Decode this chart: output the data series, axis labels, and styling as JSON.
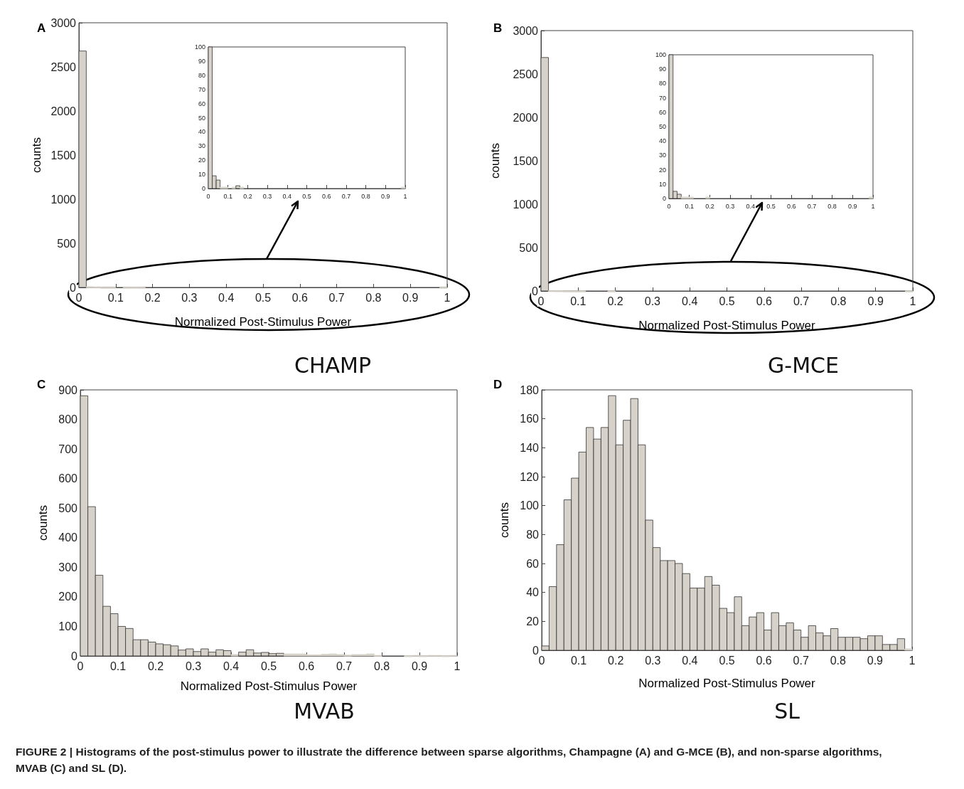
{
  "chart_data": [
    {
      "type": "histogram",
      "title": "CHAMP",
      "xlabel": "Normalized Post-Stimulus Power",
      "ylabel": "counts",
      "annotations": [
        "A"
      ],
      "color": "#d6d2c9",
      "bins": [
        0,
        0.02,
        0.04,
        0.06,
        0.08,
        0.1,
        0.12,
        0.14,
        0.16,
        0.18,
        0.2,
        0.22,
        0.24,
        0.26,
        0.28,
        0.3,
        0.32,
        0.34,
        0.36,
        0.38,
        0.4,
        0.42,
        0.44,
        0.46,
        0.48,
        0.5,
        0.52,
        0.54,
        0.56,
        0.58,
        0.6,
        0.62,
        0.64,
        0.66,
        0.68,
        0.7,
        0.72,
        0.74,
        0.76,
        0.78,
        0.8,
        0.82,
        0.84,
        0.86,
        0.88,
        0.9,
        0.92,
        0.94,
        0.96,
        0.98,
        1
      ],
      "values": [
        2680,
        9,
        6,
        1,
        1,
        0,
        1,
        2,
        1,
        0,
        0,
        0,
        0,
        0,
        0,
        0,
        0,
        0,
        0,
        0,
        0,
        0,
        0,
        0,
        0,
        0,
        0,
        0,
        0,
        0,
        0,
        0,
        0,
        0,
        0,
        0,
        0,
        0,
        0,
        0,
        0,
        0,
        0,
        0,
        0,
        0,
        0,
        0,
        0,
        1
      ],
      "xlim": [
        0,
        1
      ],
      "xticks": [
        0,
        0.1,
        0.2,
        0.3,
        0.4,
        0.5,
        0.6,
        0.7,
        0.8,
        0.9,
        1
      ],
      "ylim": [
        0,
        3000
      ],
      "yticks": [
        0,
        500,
        1000,
        1500,
        2000,
        2500,
        3000
      ]
    },
    {
      "type": "histogram",
      "color": "#d6d2c9",
      "bins": [
        0,
        0.02,
        0.04,
        0.06,
        0.08,
        0.1,
        0.12,
        0.14,
        0.16,
        0.18,
        0.2,
        0.22,
        0.24,
        0.26,
        0.28,
        0.3,
        0.32,
        0.34,
        0.36,
        0.38,
        0.4,
        0.42,
        0.44,
        0.46,
        0.48,
        0.5,
        0.52,
        0.54,
        0.56,
        0.58,
        0.6,
        0.62,
        0.64,
        0.66,
        0.68,
        0.7,
        0.72,
        0.74,
        0.76,
        0.78,
        0.8,
        0.82,
        0.84,
        0.86,
        0.88,
        0.9,
        0.92,
        0.94,
        0.96,
        0.98,
        1
      ],
      "values": [
        100,
        9,
        6,
        1,
        1,
        0,
        1,
        2,
        1,
        0,
        0,
        0,
        0,
        0,
        0,
        0,
        0,
        0,
        0,
        0,
        0,
        0,
        0,
        0,
        0,
        0,
        0,
        0,
        0,
        0,
        0,
        0,
        0,
        0,
        0,
        0,
        0,
        0,
        0,
        0,
        0,
        0,
        0,
        0,
        0,
        0,
        0,
        0,
        0,
        1
      ],
      "xlim": [
        0,
        1
      ],
      "xticks": [
        0,
        0.1,
        0.2,
        0.3,
        0.4,
        0.5,
        0.6,
        0.7,
        0.8,
        0.9,
        1
      ],
      "ylim": [
        0,
        100
      ],
      "yticks": [
        0,
        10,
        20,
        30,
        40,
        50,
        60,
        70,
        80,
        90,
        100
      ]
    },
    {
      "type": "histogram",
      "title": "G-MCE",
      "xlabel": "Normalized Post-Stimulus Power",
      "ylabel": "counts",
      "annotations": [
        "B"
      ],
      "color": "#d6d2c9",
      "bins": [
        0,
        0.02,
        0.04,
        0.06,
        0.08,
        0.1,
        0.12,
        0.14,
        0.16,
        0.18,
        0.2,
        0.22,
        0.24,
        0.26,
        0.28,
        0.3,
        0.32,
        0.34,
        0.36,
        0.38,
        0.4,
        0.42,
        0.44,
        0.46,
        0.48,
        0.5,
        0.52,
        0.54,
        0.56,
        0.58,
        0.6,
        0.62,
        0.64,
        0.66,
        0.68,
        0.7,
        0.72,
        0.74,
        0.76,
        0.78,
        0.8,
        0.82,
        0.84,
        0.86,
        0.88,
        0.9,
        0.92,
        0.94,
        0.96,
        0.98,
        1
      ],
      "values": [
        2690,
        5,
        3,
        1,
        1,
        1,
        0,
        0,
        0,
        1,
        0,
        0,
        0,
        0,
        0,
        0,
        0,
        0,
        0,
        0,
        0,
        0,
        0,
        0,
        0,
        0,
        0,
        0,
        0,
        0,
        0,
        0,
        0,
        0,
        0,
        0,
        0,
        0,
        0,
        0,
        0,
        0,
        0,
        0,
        0,
        0,
        0,
        0,
        0,
        1
      ],
      "xlim": [
        0,
        1
      ],
      "xticks": [
        0,
        0.1,
        0.2,
        0.3,
        0.4,
        0.5,
        0.6,
        0.7,
        0.8,
        0.9,
        1
      ],
      "ylim": [
        0,
        3000
      ],
      "yticks": [
        0,
        500,
        1000,
        1500,
        2000,
        2500,
        3000
      ]
    },
    {
      "type": "histogram",
      "color": "#d6d2c9",
      "bins": [
        0,
        0.02,
        0.04,
        0.06,
        0.08,
        0.1,
        0.12,
        0.14,
        0.16,
        0.18,
        0.2,
        0.22,
        0.24,
        0.26,
        0.28,
        0.3,
        0.32,
        0.34,
        0.36,
        0.38,
        0.4,
        0.42,
        0.44,
        0.46,
        0.48,
        0.5,
        0.52,
        0.54,
        0.56,
        0.58,
        0.6,
        0.62,
        0.64,
        0.66,
        0.68,
        0.7,
        0.72,
        0.74,
        0.76,
        0.78,
        0.8,
        0.82,
        0.84,
        0.86,
        0.88,
        0.9,
        0.92,
        0.94,
        0.96,
        0.98,
        1
      ],
      "values": [
        100,
        5,
        3,
        1,
        1,
        1,
        0,
        0,
        0,
        1,
        0,
        0,
        0,
        0,
        0,
        0,
        0,
        0,
        0,
        0,
        0,
        0,
        0,
        0,
        0,
        0,
        0,
        0,
        0,
        0,
        0,
        0,
        0,
        0,
        0,
        0,
        0,
        0,
        0,
        0,
        0,
        0,
        0,
        0,
        0,
        0,
        0,
        0,
        0,
        1
      ],
      "xlim": [
        0,
        1
      ],
      "xticks": [
        0,
        0.1,
        0.2,
        0.3,
        0.4,
        0.5,
        0.6,
        0.7,
        0.8,
        0.9,
        1
      ],
      "ylim": [
        0,
        100
      ],
      "yticks": [
        0,
        10,
        20,
        30,
        40,
        50,
        60,
        70,
        80,
        90,
        100
      ]
    },
    {
      "type": "histogram",
      "title": "MVAB",
      "xlabel": "Normalized Post-Stimulus Power",
      "ylabel": "counts",
      "annotations": [
        "C"
      ],
      "color": "#d6d2c9",
      "bins": [
        0,
        0.02,
        0.04,
        0.06,
        0.08,
        0.1,
        0.12,
        0.14,
        0.16,
        0.18,
        0.2,
        0.22,
        0.24,
        0.26,
        0.28,
        0.3,
        0.32,
        0.34,
        0.36,
        0.38,
        0.4,
        0.42,
        0.44,
        0.46,
        0.48,
        0.5,
        0.52,
        0.54,
        0.56,
        0.58,
        0.6,
        0.62,
        0.64,
        0.66,
        0.68,
        0.7,
        0.72,
        0.74,
        0.76,
        0.78,
        0.8,
        0.82,
        0.84,
        0.86,
        0.88,
        0.9,
        0.92,
        0.94,
        0.96,
        0.98,
        1
      ],
      "values": [
        880,
        505,
        273,
        168,
        143,
        100,
        93,
        55,
        55,
        47,
        41,
        38,
        34,
        20,
        24,
        15,
        24,
        13,
        21,
        18,
        5,
        13,
        21,
        10,
        12,
        8,
        9,
        7,
        7,
        7,
        4,
        4,
        6,
        7,
        5,
        3,
        5,
        5,
        7,
        2,
        0,
        0,
        0,
        1,
        2,
        1,
        2,
        2,
        1,
        2
      ],
      "xlim": [
        0,
        1
      ],
      "xticks": [
        0,
        0.1,
        0.2,
        0.3,
        0.4,
        0.5,
        0.6,
        0.7,
        0.8,
        0.9,
        1
      ],
      "ylim": [
        0,
        900
      ],
      "yticks": [
        0,
        100,
        200,
        300,
        400,
        500,
        600,
        700,
        800,
        900
      ]
    },
    {
      "type": "histogram",
      "title": "SL",
      "xlabel": "Normalized Post-Stimulus Power",
      "ylabel": "counts",
      "annotations": [
        "D",
        "FIGURE 2 | Histograms of the post-stimulus power to illustrate the difference between sparse algorithms, Champagne (A) and G-MCE (B), and non-sparse algorithms, MVAB (C) and SL (D)."
      ],
      "color": "#d6d2c9",
      "bins": [
        0,
        0.02,
        0.04,
        0.06,
        0.08,
        0.1,
        0.12,
        0.14,
        0.16,
        0.18,
        0.2,
        0.22,
        0.24,
        0.26,
        0.28,
        0.3,
        0.32,
        0.34,
        0.36,
        0.38,
        0.4,
        0.42,
        0.44,
        0.46,
        0.48,
        0.5,
        0.52,
        0.54,
        0.56,
        0.58,
        0.6,
        0.62,
        0.64,
        0.66,
        0.68,
        0.7,
        0.72,
        0.74,
        0.76,
        0.78,
        0.8,
        0.82,
        0.84,
        0.86,
        0.88,
        0.9,
        0.92,
        0.94,
        0.96,
        0.98,
        1
      ],
      "values": [
        3,
        44,
        73,
        104,
        119,
        137,
        154,
        146,
        154,
        176,
        142,
        159,
        174,
        142,
        90,
        71,
        62,
        62,
        60,
        53,
        43,
        43,
        51,
        45,
        29,
        26,
        37,
        17,
        23,
        26,
        14,
        26,
        17,
        19,
        14,
        9,
        17,
        12,
        10,
        15,
        9,
        9,
        9,
        8,
        10,
        10,
        4,
        4,
        8,
        1
      ],
      "xlim": [
        0,
        1
      ],
      "xticks": [
        0,
        0.1,
        0.2,
        0.3,
        0.4,
        0.5,
        0.6,
        0.7,
        0.8,
        0.9,
        1
      ],
      "ylim": [
        0,
        180
      ],
      "yticks": [
        0,
        20,
        40,
        60,
        80,
        100,
        120,
        140,
        160,
        180
      ]
    }
  ]
}
